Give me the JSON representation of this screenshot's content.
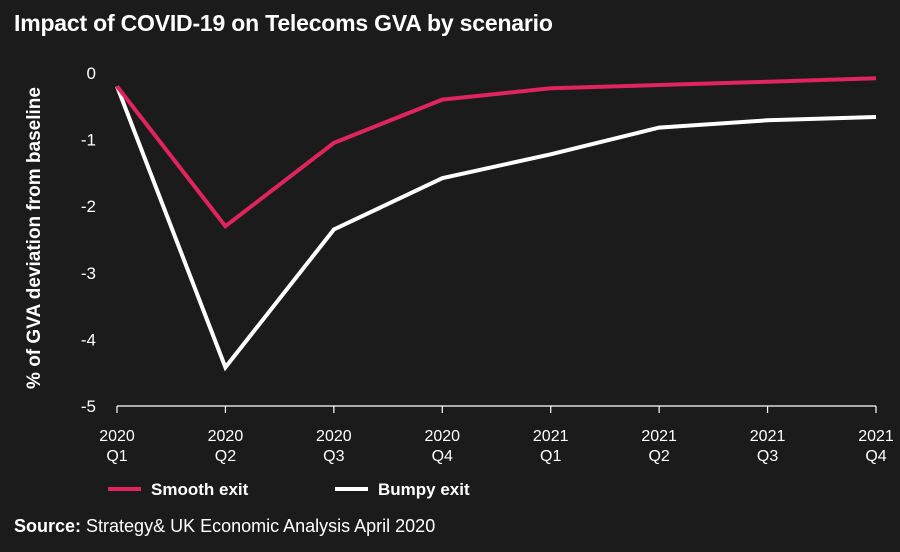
{
  "chart_data": {
    "type": "line",
    "title": "Impact of COVID-19 on Telecoms GVA by scenario",
    "ylabel": "% of GVA deviation from baseline",
    "xlabel": "",
    "ylim": [
      -5,
      0
    ],
    "yticks": [
      "0",
      "-1",
      "-2",
      "-3",
      "-4",
      "-5"
    ],
    "categories": [
      {
        "year": "2020",
        "quarter": "Q1"
      },
      {
        "year": "2020",
        "quarter": "Q2"
      },
      {
        "year": "2020",
        "quarter": "Q3"
      },
      {
        "year": "2020",
        "quarter": "Q4"
      },
      {
        "year": "2021",
        "quarter": "Q1"
      },
      {
        "year": "2021",
        "quarter": "Q2"
      },
      {
        "year": "2021",
        "quarter": "Q3"
      },
      {
        "year": "2021",
        "quarter": "Q4"
      }
    ],
    "series": [
      {
        "name": "Smooth exit",
        "color": "#e0245e",
        "values": [
          -0.2,
          -2.3,
          -1.05,
          -0.4,
          -0.23,
          -0.18,
          -0.13,
          -0.08
        ]
      },
      {
        "name": "Bumpy exit",
        "color": "#ffffff",
        "values": [
          -0.2,
          -4.42,
          -2.35,
          -1.58,
          -1.22,
          -0.82,
          -0.71,
          -0.66
        ]
      }
    ],
    "grid": false,
    "legend": "bottom-left"
  },
  "source": {
    "label": "Source:",
    "text": " Strategy& UK Economic Analysis April 2020"
  }
}
